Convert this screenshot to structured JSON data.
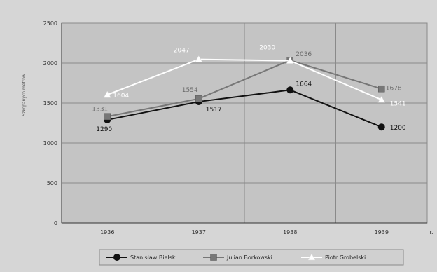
{
  "chart_data": {
    "type": "line",
    "title": "",
    "ylabel": "Szkopanych metrów",
    "xlabel": "",
    "x_axis_extra_label": "r.",
    "categories": [
      "1936",
      "1937",
      "1938",
      "1939"
    ],
    "ylim": [
      0,
      2500
    ],
    "yticks": [
      "0",
      "500",
      "1000",
      "1500",
      "2000",
      "2500"
    ],
    "grid": true,
    "legend_position": "bottom",
    "series": [
      {
        "name": "Stanisław Bielski",
        "values": [
          1290,
          1517,
          1664,
          1200
        ],
        "labels": [
          "1290",
          "1517",
          "1664",
          "1200"
        ],
        "color": "#111111",
        "marker": "circle"
      },
      {
        "name": "Julian Borkowski",
        "values": [
          1331,
          1554,
          2036,
          1678
        ],
        "labels": [
          "1331",
          "1554",
          "2036",
          "1678"
        ],
        "color": "#777777",
        "marker": "square"
      },
      {
        "name": "Piotr Grobelski",
        "values": [
          1604,
          2047,
          2030,
          1541
        ],
        "labels": [
          "1604",
          "2047",
          "2030",
          "1541"
        ],
        "color": "#ffffff",
        "marker": "triangle"
      }
    ]
  }
}
